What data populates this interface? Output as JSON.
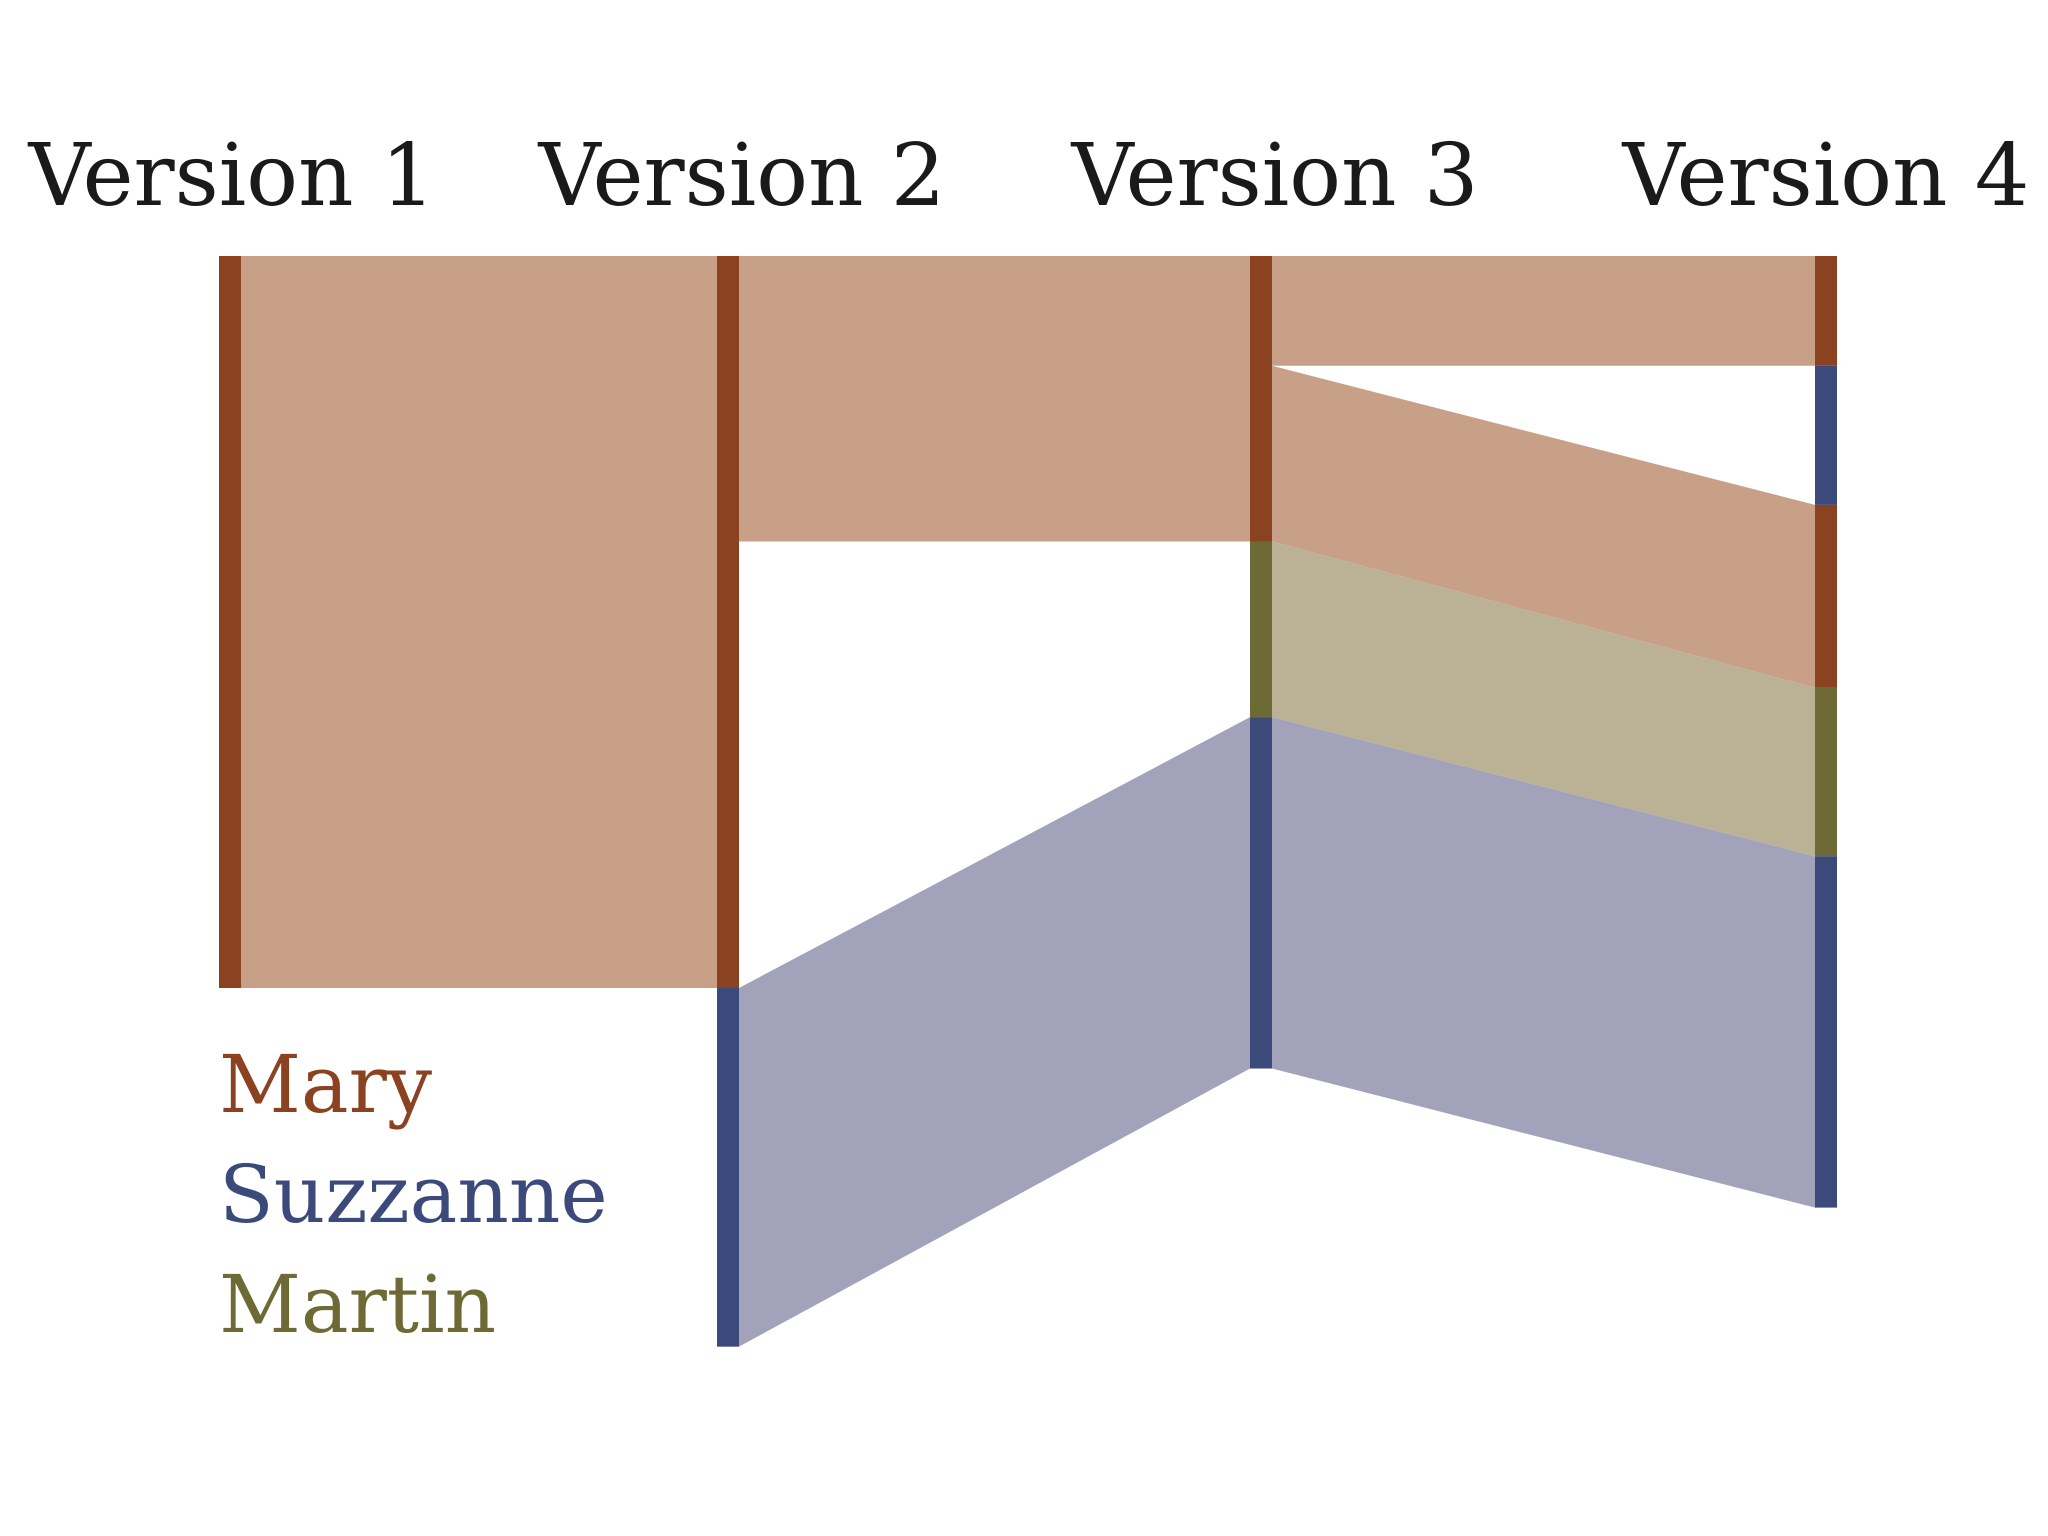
{
  "versions": [
    "Version 1",
    "Version 2",
    "Version 3",
    "Version 4"
  ],
  "authors": [
    {
      "key": "mary",
      "name": "Mary",
      "bar_color": "#8b4220",
      "band_color": "#c8a087"
    },
    {
      "key": "suzzanne",
      "name": "Suzzanne",
      "bar_color": "#3b4a7a",
      "band_color": "#a2a2bb"
    },
    {
      "key": "martin",
      "name": "Martin",
      "bar_color": "#6e6a36",
      "band_color": "#bbb194"
    }
  ],
  "legend": {
    "mary": "Mary",
    "suzzanne": "Suzzanne",
    "martin": "Martin"
  },
  "chart_data": {
    "type": "history-flow",
    "columns": [
      "Version 1",
      "Version 2",
      "Version 3",
      "Version 4"
    ],
    "segments": {
      "Version 1": [
        {
          "author": "mary",
          "start": 0,
          "end": 100
        }
      ],
      "Version 2": [
        {
          "author": "mary",
          "start": 0,
          "end": 100
        },
        {
          "author": "suzzanne",
          "start": 100,
          "end": 149
        }
      ],
      "Version 3": [
        {
          "author": "mary",
          "start": 0,
          "end": 39
        },
        {
          "author": "martin",
          "start": 39,
          "end": 63
        },
        {
          "author": "suzzanne",
          "start": 63,
          "end": 111
        }
      ],
      "Version 4": [
        {
          "author": "mary",
          "start": 0,
          "end": 15
        },
        {
          "author": "suzzanne",
          "start": 15,
          "end": 34
        },
        {
          "author": "mary",
          "start": 34,
          "end": 59
        },
        {
          "author": "martin",
          "start": 59,
          "end": 82
        },
        {
          "author": "suzzanne",
          "start": 82,
          "end": 130
        }
      ]
    },
    "flows": [
      {
        "author": "mary",
        "from": "Version 1",
        "from_range": [
          0,
          100
        ],
        "to": "Version 2",
        "to_range": [
          0,
          100
        ]
      },
      {
        "author": "mary",
        "from": "Version 2",
        "from_range": [
          0,
          39
        ],
        "to": "Version 3",
        "to_range": [
          0,
          39
        ]
      },
      {
        "author": "suzzanne",
        "from": "Version 2",
        "from_range": [
          100,
          149
        ],
        "to": "Version 3",
        "to_range": [
          63,
          111
        ]
      },
      {
        "author": "mary",
        "from": "Version 3",
        "from_range": [
          0,
          15
        ],
        "to": "Version 4",
        "to_range": [
          0,
          15
        ]
      },
      {
        "author": "mary",
        "from": "Version 3",
        "from_range": [
          15,
          39
        ],
        "to": "Version 4",
        "to_range": [
          34,
          59
        ]
      },
      {
        "author": "martin",
        "from": "Version 3",
        "from_range": [
          39,
          63
        ],
        "to": "Version 4",
        "to_range": [
          59,
          82
        ]
      },
      {
        "author": "suzzanne",
        "from": "Version 3",
        "from_range": [
          63,
          111
        ],
        "to": "Version 4",
        "to_range": [
          82,
          130
        ]
      }
    ]
  }
}
